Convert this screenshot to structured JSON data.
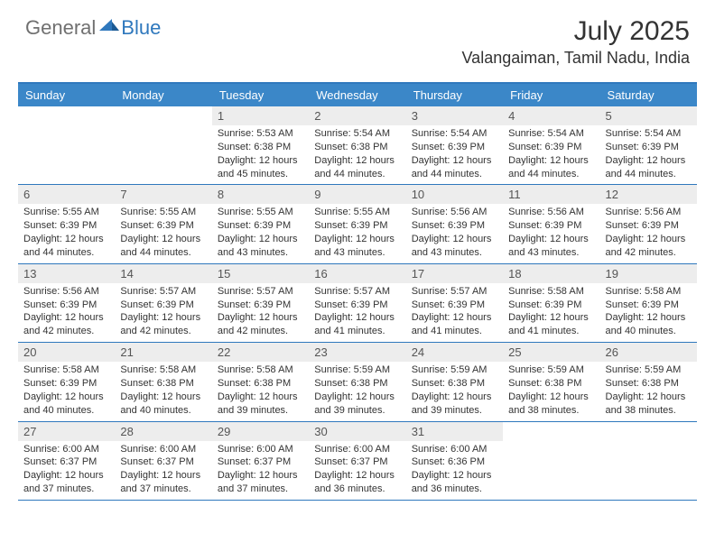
{
  "logo": {
    "text1": "General",
    "text2": "Blue"
  },
  "title": "July 2025",
  "location": "Valangaiman, Tamil Nadu, India",
  "colors": {
    "brand_blue": "#3b87c8",
    "border_blue": "#2f78bd",
    "daynum_bg": "#ededed",
    "text_gray": "#707070"
  },
  "day_headers": [
    "Sunday",
    "Monday",
    "Tuesday",
    "Wednesday",
    "Thursday",
    "Friday",
    "Saturday"
  ],
  "weeks": [
    [
      {
        "num": "",
        "sunrise": "",
        "sunset": "",
        "daylight": ""
      },
      {
        "num": "",
        "sunrise": "",
        "sunset": "",
        "daylight": ""
      },
      {
        "num": "1",
        "sunrise": "Sunrise: 5:53 AM",
        "sunset": "Sunset: 6:38 PM",
        "daylight": "Daylight: 12 hours and 45 minutes."
      },
      {
        "num": "2",
        "sunrise": "Sunrise: 5:54 AM",
        "sunset": "Sunset: 6:38 PM",
        "daylight": "Daylight: 12 hours and 44 minutes."
      },
      {
        "num": "3",
        "sunrise": "Sunrise: 5:54 AM",
        "sunset": "Sunset: 6:39 PM",
        "daylight": "Daylight: 12 hours and 44 minutes."
      },
      {
        "num": "4",
        "sunrise": "Sunrise: 5:54 AM",
        "sunset": "Sunset: 6:39 PM",
        "daylight": "Daylight: 12 hours and 44 minutes."
      },
      {
        "num": "5",
        "sunrise": "Sunrise: 5:54 AM",
        "sunset": "Sunset: 6:39 PM",
        "daylight": "Daylight: 12 hours and 44 minutes."
      }
    ],
    [
      {
        "num": "6",
        "sunrise": "Sunrise: 5:55 AM",
        "sunset": "Sunset: 6:39 PM",
        "daylight": "Daylight: 12 hours and 44 minutes."
      },
      {
        "num": "7",
        "sunrise": "Sunrise: 5:55 AM",
        "sunset": "Sunset: 6:39 PM",
        "daylight": "Daylight: 12 hours and 44 minutes."
      },
      {
        "num": "8",
        "sunrise": "Sunrise: 5:55 AM",
        "sunset": "Sunset: 6:39 PM",
        "daylight": "Daylight: 12 hours and 43 minutes."
      },
      {
        "num": "9",
        "sunrise": "Sunrise: 5:55 AM",
        "sunset": "Sunset: 6:39 PM",
        "daylight": "Daylight: 12 hours and 43 minutes."
      },
      {
        "num": "10",
        "sunrise": "Sunrise: 5:56 AM",
        "sunset": "Sunset: 6:39 PM",
        "daylight": "Daylight: 12 hours and 43 minutes."
      },
      {
        "num": "11",
        "sunrise": "Sunrise: 5:56 AM",
        "sunset": "Sunset: 6:39 PM",
        "daylight": "Daylight: 12 hours and 43 minutes."
      },
      {
        "num": "12",
        "sunrise": "Sunrise: 5:56 AM",
        "sunset": "Sunset: 6:39 PM",
        "daylight": "Daylight: 12 hours and 42 minutes."
      }
    ],
    [
      {
        "num": "13",
        "sunrise": "Sunrise: 5:56 AM",
        "sunset": "Sunset: 6:39 PM",
        "daylight": "Daylight: 12 hours and 42 minutes."
      },
      {
        "num": "14",
        "sunrise": "Sunrise: 5:57 AM",
        "sunset": "Sunset: 6:39 PM",
        "daylight": "Daylight: 12 hours and 42 minutes."
      },
      {
        "num": "15",
        "sunrise": "Sunrise: 5:57 AM",
        "sunset": "Sunset: 6:39 PM",
        "daylight": "Daylight: 12 hours and 42 minutes."
      },
      {
        "num": "16",
        "sunrise": "Sunrise: 5:57 AM",
        "sunset": "Sunset: 6:39 PM",
        "daylight": "Daylight: 12 hours and 41 minutes."
      },
      {
        "num": "17",
        "sunrise": "Sunrise: 5:57 AM",
        "sunset": "Sunset: 6:39 PM",
        "daylight": "Daylight: 12 hours and 41 minutes."
      },
      {
        "num": "18",
        "sunrise": "Sunrise: 5:58 AM",
        "sunset": "Sunset: 6:39 PM",
        "daylight": "Daylight: 12 hours and 41 minutes."
      },
      {
        "num": "19",
        "sunrise": "Sunrise: 5:58 AM",
        "sunset": "Sunset: 6:39 PM",
        "daylight": "Daylight: 12 hours and 40 minutes."
      }
    ],
    [
      {
        "num": "20",
        "sunrise": "Sunrise: 5:58 AM",
        "sunset": "Sunset: 6:39 PM",
        "daylight": "Daylight: 12 hours and 40 minutes."
      },
      {
        "num": "21",
        "sunrise": "Sunrise: 5:58 AM",
        "sunset": "Sunset: 6:38 PM",
        "daylight": "Daylight: 12 hours and 40 minutes."
      },
      {
        "num": "22",
        "sunrise": "Sunrise: 5:58 AM",
        "sunset": "Sunset: 6:38 PM",
        "daylight": "Daylight: 12 hours and 39 minutes."
      },
      {
        "num": "23",
        "sunrise": "Sunrise: 5:59 AM",
        "sunset": "Sunset: 6:38 PM",
        "daylight": "Daylight: 12 hours and 39 minutes."
      },
      {
        "num": "24",
        "sunrise": "Sunrise: 5:59 AM",
        "sunset": "Sunset: 6:38 PM",
        "daylight": "Daylight: 12 hours and 39 minutes."
      },
      {
        "num": "25",
        "sunrise": "Sunrise: 5:59 AM",
        "sunset": "Sunset: 6:38 PM",
        "daylight": "Daylight: 12 hours and 38 minutes."
      },
      {
        "num": "26",
        "sunrise": "Sunrise: 5:59 AM",
        "sunset": "Sunset: 6:38 PM",
        "daylight": "Daylight: 12 hours and 38 minutes."
      }
    ],
    [
      {
        "num": "27",
        "sunrise": "Sunrise: 6:00 AM",
        "sunset": "Sunset: 6:37 PM",
        "daylight": "Daylight: 12 hours and 37 minutes."
      },
      {
        "num": "28",
        "sunrise": "Sunrise: 6:00 AM",
        "sunset": "Sunset: 6:37 PM",
        "daylight": "Daylight: 12 hours and 37 minutes."
      },
      {
        "num": "29",
        "sunrise": "Sunrise: 6:00 AM",
        "sunset": "Sunset: 6:37 PM",
        "daylight": "Daylight: 12 hours and 37 minutes."
      },
      {
        "num": "30",
        "sunrise": "Sunrise: 6:00 AM",
        "sunset": "Sunset: 6:37 PM",
        "daylight": "Daylight: 12 hours and 36 minutes."
      },
      {
        "num": "31",
        "sunrise": "Sunrise: 6:00 AM",
        "sunset": "Sunset: 6:36 PM",
        "daylight": "Daylight: 12 hours and 36 minutes."
      },
      {
        "num": "",
        "sunrise": "",
        "sunset": "",
        "daylight": ""
      },
      {
        "num": "",
        "sunrise": "",
        "sunset": "",
        "daylight": ""
      }
    ]
  ]
}
